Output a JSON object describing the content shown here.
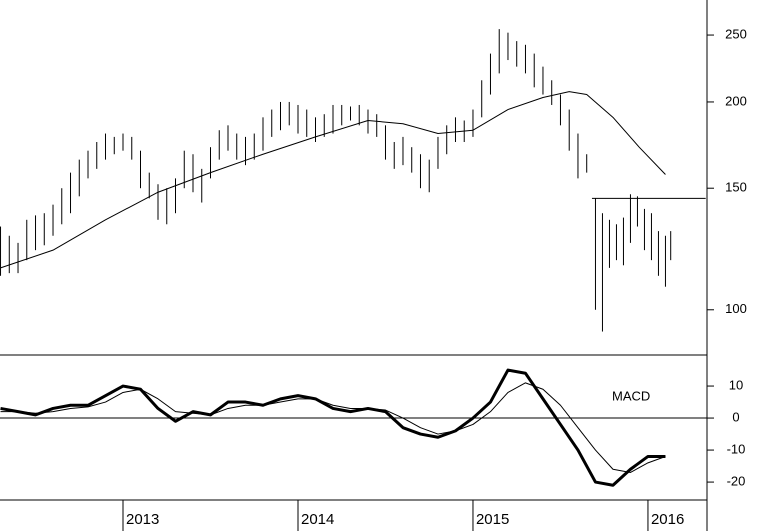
{
  "chart_data": [
    {
      "type": "ohlc",
      "log": true,
      "color": "#000000",
      "x": [
        2012.3,
        2012.35,
        2012.4,
        2012.45,
        2012.5,
        2012.55,
        2012.6,
        2012.65,
        2012.7,
        2012.75,
        2012.8,
        2012.85,
        2012.9,
        2012.95,
        2013.0,
        2013.05,
        2013.1,
        2013.15,
        2013.2,
        2013.25,
        2013.3,
        2013.35,
        2013.4,
        2013.45,
        2013.5,
        2013.55,
        2013.6,
        2013.65,
        2013.7,
        2013.75,
        2013.8,
        2013.85,
        2013.9,
        2013.95,
        2014.0,
        2014.05,
        2014.1,
        2014.15,
        2014.2,
        2014.25,
        2014.3,
        2014.35,
        2014.4,
        2014.45,
        2014.5,
        2014.55,
        2014.6,
        2014.65,
        2014.7,
        2014.75,
        2014.8,
        2014.85,
        2014.9,
        2014.95,
        2015.0,
        2015.05,
        2015.1,
        2015.15,
        2015.2,
        2015.25,
        2015.3,
        2015.35,
        2015.4,
        2015.45,
        2015.5,
        2015.55,
        2015.6,
        2015.65
      ],
      "high": [
        132,
        128,
        125,
        135,
        137,
        138,
        142,
        150,
        158,
        165,
        170,
        175,
        180,
        178,
        180,
        178,
        170,
        158,
        152,
        150,
        155,
        170,
        168,
        160,
        172,
        182,
        185,
        180,
        178,
        180,
        190,
        195,
        200,
        200,
        198,
        195,
        190,
        192,
        198,
        198,
        197,
        198,
        195,
        192,
        185,
        175,
        178,
        172,
        168,
        165,
        178,
        185,
        190,
        188,
        195,
        215,
        235,
        255,
        252,
        245,
        242,
        235,
        225,
        215,
        205,
        195,
        180,
        168
      ],
      "low": [
        112,
        113,
        113,
        118,
        122,
        124,
        128,
        133,
        138,
        146,
        155,
        160,
        165,
        168,
        170,
        165,
        150,
        145,
        135,
        133,
        138,
        150,
        148,
        143,
        155,
        165,
        170,
        165,
        162,
        165,
        170,
        178,
        182,
        185,
        180,
        178,
        175,
        178,
        180,
        185,
        188,
        185,
        180,
        178,
        165,
        160,
        162,
        158,
        150,
        148,
        160,
        168,
        175,
        175,
        178,
        190,
        205,
        220,
        230,
        225,
        220,
        210,
        205,
        198,
        185,
        170,
        155,
        158
      ],
      "projection": {
        "x": [
          2015.7,
          2015.74,
          2015.78,
          2015.82,
          2015.86,
          2015.9,
          2015.94,
          2015.98,
          2016.02,
          2016.06,
          2016.1,
          2016.13
        ],
        "high": [
          145,
          138,
          135,
          133,
          136,
          147,
          146,
          140,
          138,
          130,
          128,
          130
        ],
        "low": [
          100,
          93,
          115,
          118,
          116,
          125,
          132,
          122,
          118,
          112,
          108,
          118
        ]
      },
      "average": {
        "x": [
          2012.3,
          2012.6,
          2012.9,
          2013.2,
          2013.5,
          2013.8,
          2014.1,
          2014.4,
          2014.6,
          2014.8,
          2015.0,
          2015.2,
          2015.4,
          2015.55,
          2015.65,
          2015.8,
          2015.95,
          2016.1
        ],
        "values": [
          115,
          122,
          135,
          148,
          158,
          168,
          178,
          188,
          186,
          180,
          182,
          195,
          203,
          207,
          205,
          190,
          172,
          157
        ]
      },
      "level": {
        "value": 145,
        "x": [
          2015.68,
          2016.33
        ]
      },
      "xlim": [
        2012.297,
        2016.326
      ],
      "xticks": [
        2013,
        2014,
        2015,
        2016
      ],
      "ylim": [
        86,
        281
      ],
      "yticks": [
        100,
        150,
        200,
        250
      ]
    },
    {
      "type": "line",
      "annotation": "MACD",
      "color": "#000000",
      "x": [
        2012.3,
        2012.4,
        2012.5,
        2012.6,
        2012.7,
        2012.8,
        2012.9,
        2013.0,
        2013.1,
        2013.2,
        2013.3,
        2013.4,
        2013.5,
        2013.6,
        2013.7,
        2013.8,
        2013.9,
        2014.0,
        2014.1,
        2014.2,
        2014.3,
        2014.4,
        2014.5,
        2014.6,
        2014.7,
        2014.8,
        2014.9,
        2015.0,
        2015.1,
        2015.2,
        2015.3,
        2015.4,
        2015.5,
        2015.6,
        2015.7,
        2015.8,
        2015.9,
        2016.0,
        2016.1
      ],
      "series": [
        {
          "width": 3,
          "values": [
            3,
            2,
            1,
            3,
            4,
            4,
            7,
            10,
            9,
            3,
            -1,
            2,
            1,
            5,
            5,
            4,
            6,
            7,
            6,
            3,
            2,
            3,
            2,
            -3,
            -5,
            -6,
            -4,
            0,
            5,
            15,
            14,
            6,
            -2,
            -10,
            -20,
            -21,
            -16,
            -12,
            -12
          ]
        },
        {
          "width": 1,
          "values": [
            2,
            2,
            1.5,
            2,
            3,
            3.5,
            5,
            8,
            9,
            6,
            2,
            1.5,
            1,
            3,
            4,
            4,
            5,
            6,
            6,
            4,
            3,
            3,
            2.5,
            0,
            -3,
            -5,
            -4,
            -2,
            2,
            8,
            11,
            9,
            4,
            -3,
            -10,
            -16,
            -17,
            -14,
            -12
          ]
        }
      ],
      "xlim": [
        2012.297,
        2016.326
      ],
      "ylim": [
        -25.6,
        19.7
      ],
      "yticks": [
        10,
        0,
        -10,
        -20
      ]
    }
  ]
}
